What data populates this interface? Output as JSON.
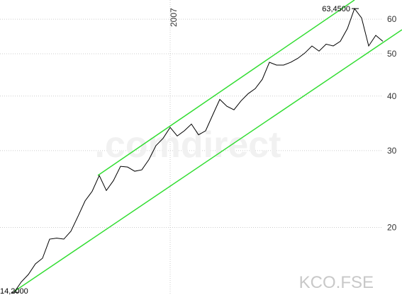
{
  "chart_data": {
    "type": "line",
    "watermark": ".comdirect",
    "symbol": "KCO.FSE",
    "log_scale": true,
    "grid": true,
    "categories": [
      null,
      null,
      null,
      null,
      null,
      null,
      null,
      null,
      null,
      null,
      null,
      null,
      null,
      null,
      null,
      null,
      null,
      null,
      null,
      null,
      null,
      null,
      "2007",
      null,
      null,
      null,
      null,
      null,
      null,
      null,
      null,
      null,
      null,
      null,
      null,
      null,
      null,
      null,
      null,
      null,
      null,
      null,
      null,
      null,
      null,
      null,
      null,
      null,
      null,
      null,
      null,
      null,
      null
    ],
    "series": [
      {
        "color": "#000000",
        "values": [
          14.2,
          15.0,
          15.6,
          16.5,
          17.0,
          18.8,
          18.9,
          18.8,
          19.6,
          21.2,
          23.0,
          24.2,
          26.3,
          24.3,
          25.6,
          27.6,
          27.5,
          26.9,
          27.1,
          28.6,
          30.8,
          32.0,
          33.9,
          32.4,
          33.3,
          34.5,
          32.6,
          33.3,
          36.2,
          39.3,
          37.9,
          37.2,
          39.0,
          40.5,
          41.6,
          43.7,
          47.8,
          47.1,
          47.1,
          47.8,
          48.8,
          50.2,
          52.1,
          50.7,
          52.6,
          52.1,
          53.4,
          57.1,
          63.45,
          60.4,
          52.1,
          55.1,
          53.4
        ],
        "value_labels": [
          "14,2000",
          null,
          null,
          null,
          null,
          null,
          null,
          null,
          null,
          null,
          null,
          null,
          null,
          null,
          null,
          null,
          null,
          null,
          null,
          null,
          null,
          null,
          null,
          null,
          null,
          null,
          null,
          null,
          null,
          null,
          null,
          null,
          null,
          null,
          null,
          null,
          null,
          null,
          null,
          null,
          null,
          null,
          null,
          null,
          null,
          null,
          null,
          null,
          "63,4500",
          null,
          null,
          null,
          null
        ]
      }
    ],
    "channel_color": "#33dd33",
    "ylim": [
      14,
      66.4
    ],
    "yticks": [
      20,
      30,
      40,
      50,
      60
    ]
  }
}
